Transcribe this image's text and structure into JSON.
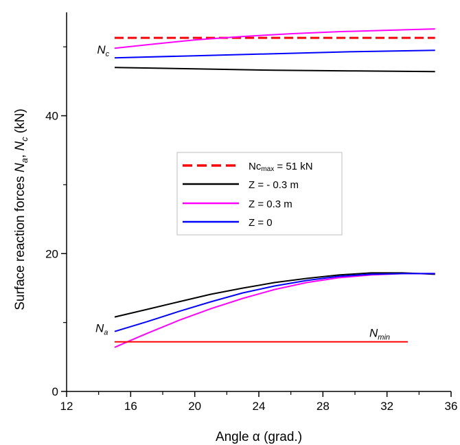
{
  "chart_data": {
    "type": "line",
    "xlabel": "Angle α (grad.)",
    "ylabel_parts": [
      "Surface reaction forces ",
      "N",
      "a",
      ", ",
      "N",
      "c",
      " (kN)"
    ],
    "xlim": [
      12,
      36
    ],
    "ylim": [
      0,
      55
    ],
    "x_major_ticks": [
      12,
      16,
      20,
      24,
      28,
      32,
      36
    ],
    "x_minor_ticks": [
      14,
      18,
      22,
      26,
      30,
      34
    ],
    "y_major_ticks": [
      0,
      20,
      40
    ],
    "y_minor_ticks": [
      10,
      30,
      50
    ],
    "grid": false,
    "legend_placement": "center",
    "legend": [
      {
        "text_main": "Nc",
        "text_sub": "max",
        "text_rest": " = 51 kN",
        "color": "#ff0000",
        "dashed": true
      },
      {
        "text_main": "Z = - 0.3 m",
        "color": "#000000",
        "dashed": false
      },
      {
        "text_main": "Z = 0.3 m",
        "color": "#ff00ff",
        "dashed": false
      },
      {
        "text_main": "Z = 0",
        "color": "#0000ff",
        "dashed": false
      }
    ],
    "annotations": [
      {
        "id": "nc",
        "main": "N",
        "sub": "c",
        "x": 13.9,
        "y": 49.0
      },
      {
        "id": "na",
        "main": "N",
        "sub": "a",
        "x": 13.8,
        "y": 8.6
      },
      {
        "id": "nmin",
        "main": "N",
        "sub": "min",
        "x": 30.9,
        "y": 7.9
      }
    ],
    "series": [
      {
        "key": "nc_max",
        "color": "#ff0000",
        "dashed": true,
        "width": 3,
        "x": [
          15,
          35
        ],
        "y": [
          51.3,
          51.3
        ]
      },
      {
        "key": "nc_zm03",
        "color": "#000000",
        "dashed": false,
        "width": 2,
        "x": [
          15,
          20,
          25,
          30,
          35
        ],
        "y": [
          47.0,
          46.8,
          46.6,
          46.5,
          46.4
        ]
      },
      {
        "key": "nc_zp03",
        "color": "#ff00ff",
        "dashed": false,
        "width": 2,
        "x": [
          15,
          17,
          20,
          23,
          26,
          29,
          32,
          35
        ],
        "y": [
          49.8,
          50.3,
          51.0,
          51.5,
          51.9,
          52.2,
          52.4,
          52.6
        ]
      },
      {
        "key": "nc_z0",
        "color": "#0000ff",
        "dashed": false,
        "width": 2,
        "x": [
          15,
          20,
          25,
          30,
          35
        ],
        "y": [
          48.4,
          48.7,
          49.0,
          49.3,
          49.5
        ]
      },
      {
        "key": "na_zm03",
        "color": "#000000",
        "dashed": false,
        "width": 2,
        "x": [
          15,
          17,
          19,
          21,
          23,
          25,
          27,
          29,
          31,
          33,
          35
        ],
        "y": [
          10.8,
          11.9,
          13.0,
          14.1,
          15.0,
          15.8,
          16.4,
          16.9,
          17.2,
          17.2,
          17.0
        ]
      },
      {
        "key": "na_zp03",
        "color": "#ff00ff",
        "dashed": false,
        "width": 2,
        "x": [
          15,
          16,
          17,
          19,
          21,
          23,
          25,
          27,
          29,
          31,
          33,
          35
        ],
        "y": [
          6.4,
          7.4,
          8.4,
          10.3,
          12.0,
          13.5,
          14.8,
          15.8,
          16.5,
          16.9,
          17.1,
          17.1
        ]
      },
      {
        "key": "na_z0",
        "color": "#0000ff",
        "dashed": false,
        "width": 2,
        "x": [
          15,
          17,
          19,
          21,
          23,
          25,
          27,
          29,
          31,
          33,
          35
        ],
        "y": [
          8.7,
          10.1,
          11.6,
          13.0,
          14.3,
          15.3,
          16.1,
          16.7,
          17.0,
          17.1,
          17.1
        ]
      },
      {
        "key": "n_min",
        "color": "#ff0000",
        "dashed": false,
        "width": 2,
        "x": [
          15,
          33.3
        ],
        "y": [
          7.2,
          7.2
        ]
      }
    ]
  }
}
